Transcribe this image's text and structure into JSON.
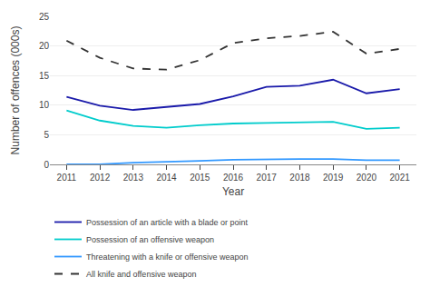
{
  "chart_data": {
    "type": "line",
    "x_label": "Year",
    "y_label": "Number of offences (000s)",
    "x": [
      2011,
      2012,
      2013,
      2014,
      2015,
      2016,
      2017,
      2018,
      2019,
      2020,
      2021
    ],
    "series": [
      {
        "name": "Possession of an article with a blade or point",
        "color": "#1a1aaa",
        "line_style": "solid",
        "values": [
          11.4,
          9.9,
          9.2,
          9.7,
          10.2,
          11.5,
          13.1,
          13.3,
          14.3,
          12.0,
          12.7
        ]
      },
      {
        "name": "Possession of an offensive weapon",
        "color": "#00cccc",
        "line_style": "solid",
        "values": [
          9.1,
          7.4,
          6.5,
          6.2,
          6.6,
          6.9,
          7.0,
          7.1,
          7.2,
          6.0,
          6.2
        ]
      },
      {
        "name": "Threatening with a knife or offensive weapon",
        "color": "#3399ff",
        "line_style": "solid",
        "values": [
          0.0,
          0.0,
          0.3,
          0.4,
          0.6,
          0.8,
          0.9,
          0.9,
          0.9,
          0.7,
          0.7
        ]
      },
      {
        "name": "All knife and offensive weapon",
        "color": "#333333",
        "line_style": "dashed",
        "values": [
          20.9,
          18.0,
          16.2,
          16.0,
          17.6,
          20.5,
          21.3,
          21.7,
          22.4,
          18.7,
          19.5
        ]
      }
    ],
    "xlim": [
      2010.5,
      2021.5
    ],
    "xticks": [
      2011,
      2012,
      2013,
      2014,
      2015,
      2016,
      2017,
      2018,
      2019,
      2020,
      2021
    ],
    "ylim": [
      0,
      25
    ],
    "yticks": [
      0,
      5,
      10,
      15,
      20,
      25
    ],
    "grid": true,
    "legend": "bottom"
  }
}
